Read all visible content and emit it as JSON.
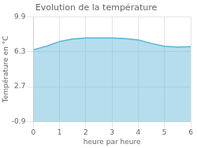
{
  "chart_data": {
    "type": "area",
    "title": "Evolution de la température",
    "xlabel": "heure par heure",
    "ylabel": "Température en °C",
    "x": [
      0,
      0.5,
      1.0,
      1.5,
      2.0,
      2.5,
      3.0,
      3.5,
      4.0,
      4.5,
      5.0,
      5.5,
      6.0
    ],
    "values": [
      6.5,
      6.85,
      7.35,
      7.6,
      7.7,
      7.7,
      7.7,
      7.65,
      7.5,
      7.15,
      6.85,
      6.78,
      6.82
    ],
    "color": "#5ab4d6",
    "xlim": [
      0,
      6
    ],
    "ylim": [
      -0.9,
      9.9
    ],
    "xticks": [
      0,
      1,
      2,
      3,
      4,
      5,
      6
    ],
    "yticks": [
      -0.9,
      2.7,
      6.3,
      9.9
    ],
    "grid": true
  }
}
